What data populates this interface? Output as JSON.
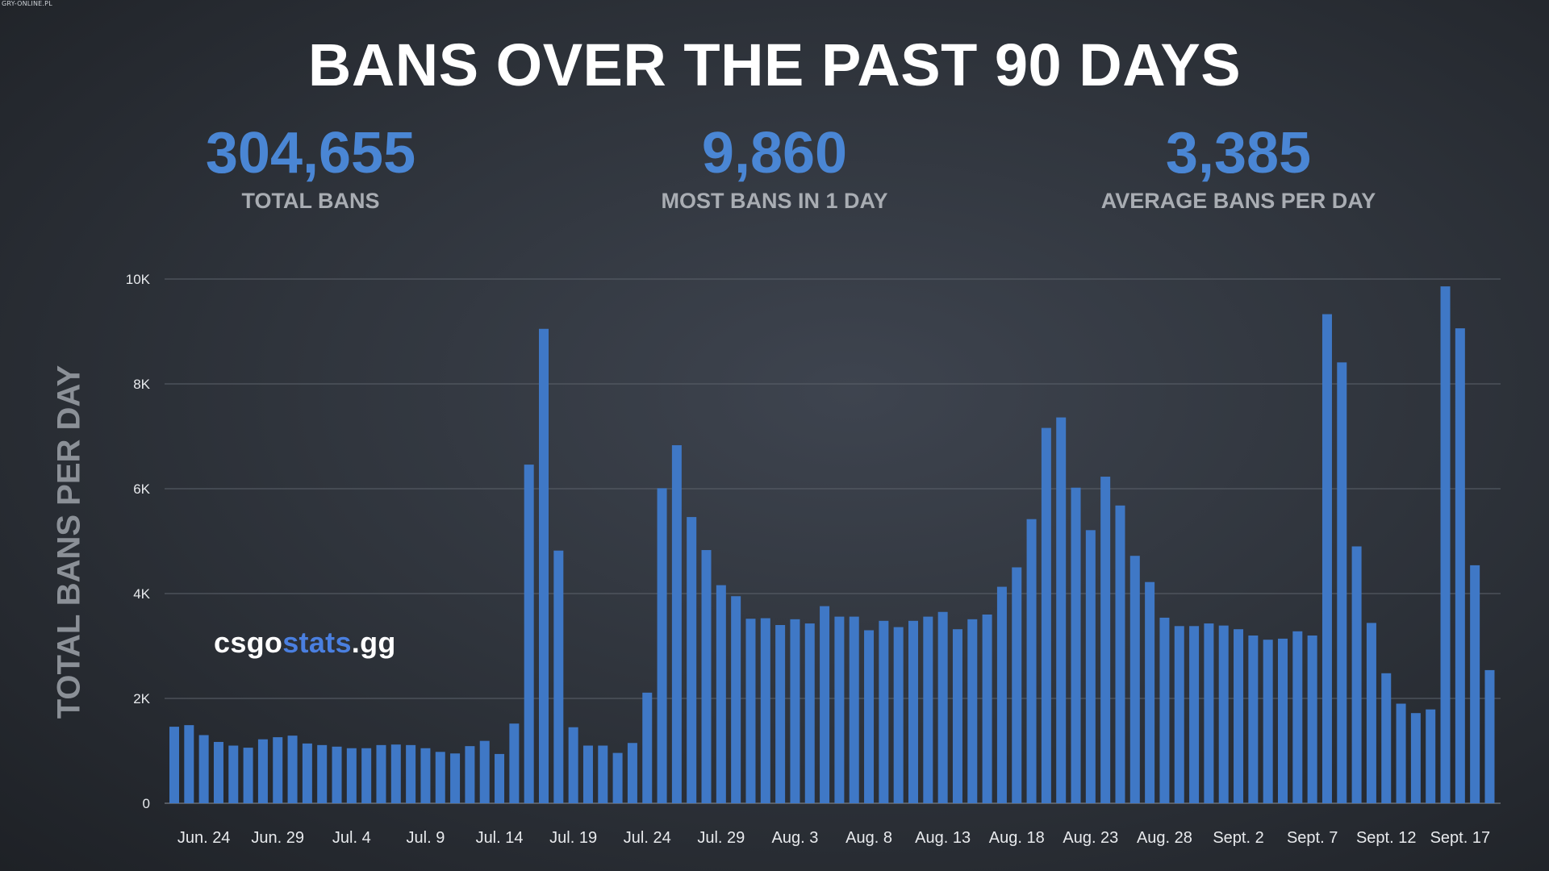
{
  "watermark": "GRY-ONLINE.PL",
  "logo": {
    "part1": "csgo",
    "part2": "stats",
    "part3": ".gg"
  },
  "stats": [
    {
      "value": "304,655",
      "label": "TOTAL BANS"
    },
    {
      "value": "9,860",
      "label": "MOST BANS IN 1 DAY"
    },
    {
      "value": "3,385",
      "label": "AVERAGE BANS PER DAY"
    }
  ],
  "chart_data": {
    "type": "bar",
    "title": "BANS OVER THE PAST 90 DAYS",
    "xlabel": "",
    "ylabel": "TOTAL BANS PER DAY",
    "ylim": [
      0,
      10000
    ],
    "yticks": [
      0,
      2000,
      4000,
      6000,
      8000,
      10000
    ],
    "ytick_labels": [
      "0",
      "2K",
      "4K",
      "6K",
      "8K",
      "10K"
    ],
    "xtick_labels": [
      "Jun. 24",
      "Jun. 29",
      "Jul. 4",
      "Jul. 9",
      "Jul. 14",
      "Jul. 19",
      "Jul. 24",
      "Jul. 29",
      "Aug. 3",
      "Aug. 8",
      "Aug. 13",
      "Aug. 18",
      "Aug. 23",
      "Aug. 28",
      "Sept. 2",
      "Sept. 7",
      "Sept. 12",
      "Sept. 17"
    ],
    "xtick_index_start": 2,
    "xtick_index_step": 5,
    "grid": true,
    "bar_color": "#3f78c6",
    "values": [
      1460,
      1490,
      1300,
      1170,
      1100,
      1060,
      1220,
      1260,
      1290,
      1140,
      1110,
      1080,
      1050,
      1050,
      1110,
      1120,
      1110,
      1050,
      980,
      950,
      1090,
      1190,
      940,
      1520,
      6460,
      9050,
      4820,
      1450,
      1100,
      1100,
      960,
      1150,
      2110,
      6010,
      6830,
      5460,
      4830,
      4160,
      3950,
      3520,
      3530,
      3400,
      3510,
      3430,
      3760,
      3560,
      3560,
      3300,
      3480,
      3360,
      3480,
      3560,
      3650,
      3320,
      3510,
      3600,
      4130,
      4500,
      5420,
      7160,
      7360,
      6020,
      5210,
      6230,
      5680,
      4720,
      4220,
      3540,
      3380,
      3380,
      3430,
      3390,
      3320,
      3200,
      3120,
      3140,
      3280,
      3200,
      9330,
      8410,
      4900,
      3440,
      2480,
      1900,
      1720,
      1790,
      9860,
      9060,
      4540,
      2540
    ]
  }
}
